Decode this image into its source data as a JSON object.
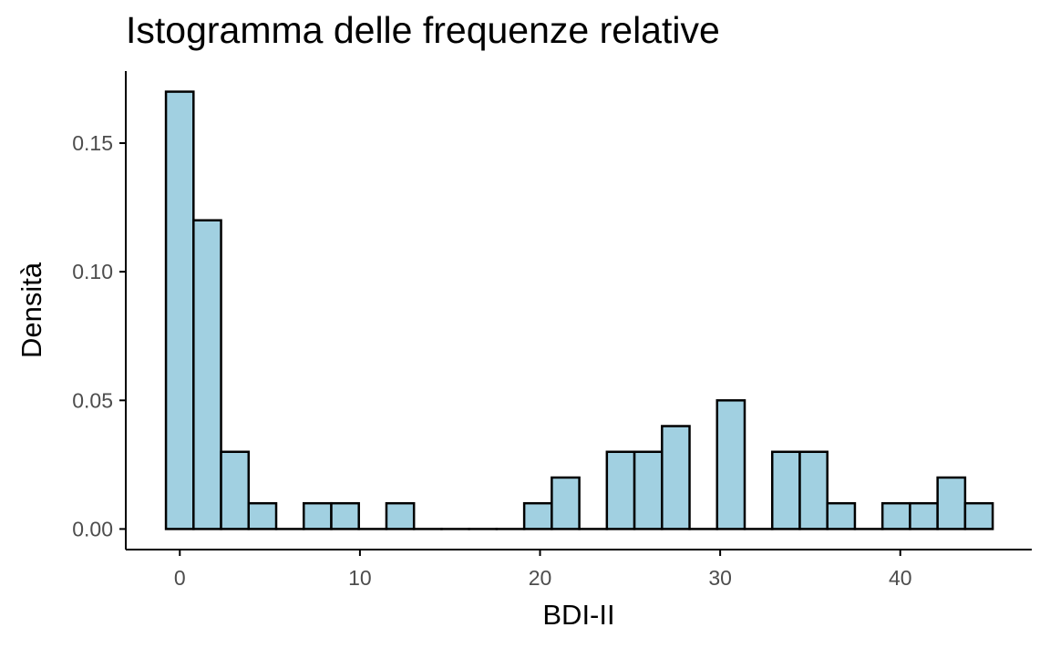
{
  "chart_data": {
    "type": "bar",
    "title": "Istogramma delle frequenze relative",
    "xlabel": "BDI-II",
    "ylabel": "Densità",
    "xlim": [
      -3,
      47.3
    ],
    "ylim": [
      -0.008,
      0.178
    ],
    "x_ticks": [
      0,
      10,
      20,
      30,
      40
    ],
    "x_tick_labels": [
      "0",
      "10",
      "20",
      "30",
      "40"
    ],
    "y_ticks": [
      0,
      0.05,
      0.1,
      0.15
    ],
    "y_tick_labels": [
      "0.00",
      "0.05",
      "0.10",
      "0.15"
    ],
    "bin_width": 1.53,
    "bin_start": -0.77,
    "values": [
      0.17,
      0.12,
      0.03,
      0.01,
      0,
      0.01,
      0.01,
      0,
      0.01,
      0,
      0,
      0,
      0,
      0.01,
      0.02,
      0,
      0.03,
      0.03,
      0.04,
      0,
      0.05,
      0,
      0.03,
      0.03,
      0.01,
      0,
      0.01,
      0.01,
      0.02,
      0.01
    ],
    "fill_color": "#a1d0e1",
    "edge_color": "#000000",
    "grid": false,
    "legend": "none"
  }
}
